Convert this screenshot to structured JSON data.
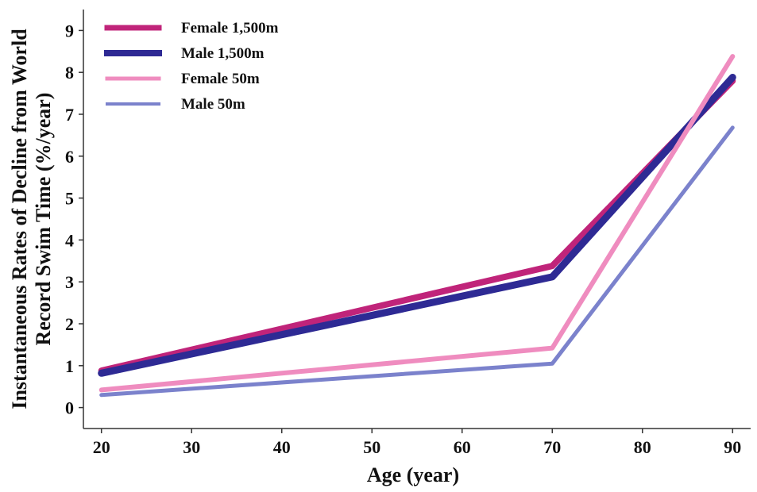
{
  "chart_data": {
    "type": "line",
    "xlabel": "Age (year)",
    "ylabel_lines": [
      "Instantaneous Rates of Decline from World",
      "Record Swim Time (%/year)"
    ],
    "x": [
      20,
      70,
      90
    ],
    "xticks": [
      20,
      30,
      40,
      50,
      60,
      70,
      80,
      90
    ],
    "yticks": [
      0,
      1,
      2,
      3,
      4,
      5,
      6,
      7,
      8,
      9
    ],
    "xlim": [
      18,
      92
    ],
    "ylim": [
      -0.5,
      9.5
    ],
    "grid": false,
    "legend_position": "top-left",
    "series": [
      {
        "name": "Female 1,500m",
        "values": [
          0.88,
          3.38,
          7.8
        ],
        "color": "#c0247a"
      },
      {
        "name": "Male 1,500m",
        "values": [
          0.82,
          3.12,
          7.88
        ],
        "color": "#2e2a94"
      },
      {
        "name": "Female 50m",
        "values": [
          0.42,
          1.42,
          8.38
        ],
        "color": "#ef8cbf"
      },
      {
        "name": "Male 50m",
        "values": [
          0.3,
          1.05,
          6.68
        ],
        "color": "#7b82cc"
      }
    ]
  }
}
